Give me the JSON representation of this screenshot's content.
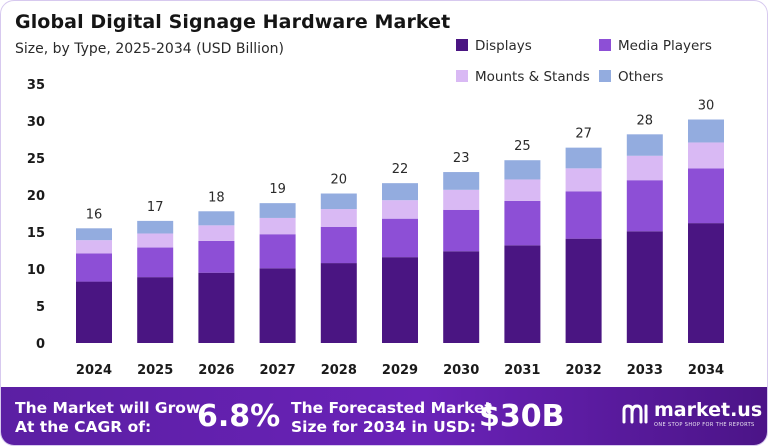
{
  "header": {
    "title": "Global Digital Signage Hardware Market",
    "subtitle": "Size, by Type, 2025-2034 (USD Billion)"
  },
  "legend": [
    {
      "label": "Displays",
      "color": "#4a1582"
    },
    {
      "label": "Media Players",
      "color": "#8d4fd6"
    },
    {
      "label": "Mounts & Stands",
      "color": "#d9b9f4"
    },
    {
      "label": "Others",
      "color": "#93acdf"
    }
  ],
  "chart_data": {
    "type": "bar",
    "stacked": true,
    "categories": [
      "2024",
      "2025",
      "2026",
      "2027",
      "2028",
      "2029",
      "2030",
      "2031",
      "2032",
      "2033",
      "2034"
    ],
    "series": [
      {
        "name": "Displays",
        "color": "#4a1582",
        "values": [
          8.3,
          8.9,
          9.5,
          10.1,
          10.8,
          11.6,
          12.4,
          13.2,
          14.1,
          15.1,
          16.2
        ]
      },
      {
        "name": "Media Players",
        "color": "#8d4fd6",
        "values": [
          3.8,
          4.0,
          4.3,
          4.6,
          4.9,
          5.2,
          5.6,
          6.0,
          6.4,
          6.9,
          7.4
        ]
      },
      {
        "name": "Mounts & Stands",
        "color": "#d9b9f4",
        "values": [
          1.8,
          1.9,
          2.1,
          2.2,
          2.4,
          2.5,
          2.7,
          2.9,
          3.1,
          3.3,
          3.5
        ]
      },
      {
        "name": "Others",
        "color": "#93acdf",
        "values": [
          1.6,
          1.7,
          1.9,
          2.0,
          2.1,
          2.3,
          2.4,
          2.6,
          2.8,
          2.9,
          3.1
        ]
      }
    ],
    "totals": [
      "16",
      "17",
      "18",
      "19",
      "20",
      "22",
      "23",
      "25",
      "27",
      "28",
      "30"
    ],
    "y_ticks": [
      0,
      5,
      10,
      15,
      20,
      25,
      30,
      35
    ],
    "ylim": [
      0,
      35
    ],
    "grid": false
  },
  "footer": {
    "grow_line1": "The Market will Grow",
    "grow_line2": "At the CAGR of:",
    "cagr": "6.8%",
    "forecast_line1": "The Forecasted Market",
    "forecast_line2": "Size for 2034 in USD:",
    "forecast_value": "$30B",
    "brand_name": "market.us",
    "brand_tagline": "ONE STOP SHOP FOR THE REPORTS"
  }
}
